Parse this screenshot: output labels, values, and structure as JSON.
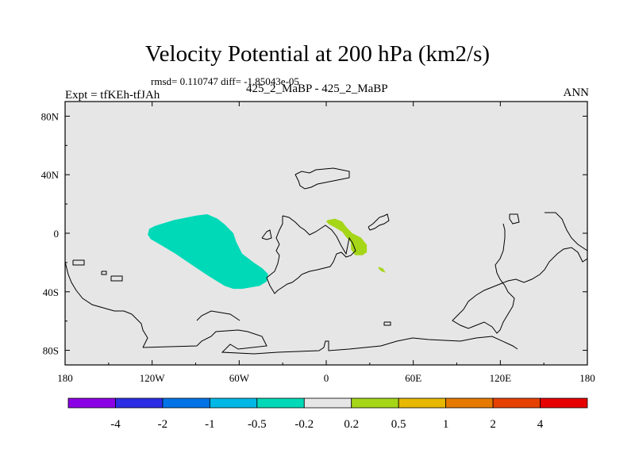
{
  "title": "Velocity Potential at 200 hPa (km2/s)",
  "stats": "rmsd= 0.110747 diff= -1.85043e-05",
  "expt": "Expt = tfKEh-tfJAh",
  "cases": "425_2_MaBP - 425_2_MaBP",
  "season": "ANN",
  "map": {
    "lon_range": [
      -180,
      180
    ],
    "lat_range": [
      -90,
      90
    ],
    "x_ticks": [
      {
        "lon": -180,
        "label": "180"
      },
      {
        "lon": -120,
        "label": "120W"
      },
      {
        "lon": -60,
        "label": "60W"
      },
      {
        "lon": 0,
        "label": "0"
      },
      {
        "lon": 60,
        "label": "60E"
      },
      {
        "lon": 120,
        "label": "120E"
      },
      {
        "lon": 180,
        "label": "180"
      }
    ],
    "y_ticks": [
      {
        "lat": 80,
        "label": "80N"
      },
      {
        "lat": 40,
        "label": "40N"
      },
      {
        "lat": 0,
        "label": "0"
      },
      {
        "lat": -40,
        "label": "40S"
      },
      {
        "lat": -80,
        "label": "80S"
      }
    ],
    "background_color": "#e6e6e6",
    "regions": [
      {
        "name": "negative-anomaly-pacific",
        "color": "#00d9b8",
        "outline": [
          [
            -122,
            3
          ],
          [
            -118,
            5
          ],
          [
            -105,
            9
          ],
          [
            -90,
            12
          ],
          [
            -82,
            13
          ],
          [
            -75,
            10
          ],
          [
            -70,
            6
          ],
          [
            -64,
            0
          ],
          [
            -62,
            -6
          ],
          [
            -58,
            -14
          ],
          [
            -50,
            -20
          ],
          [
            -44,
            -24
          ],
          [
            -40,
            -28
          ],
          [
            -41,
            -33
          ],
          [
            -46,
            -36
          ],
          [
            -58,
            -38
          ],
          [
            -64,
            -38
          ],
          [
            -70,
            -36
          ],
          [
            -80,
            -30
          ],
          [
            -92,
            -22
          ],
          [
            -104,
            -14
          ],
          [
            -114,
            -8
          ],
          [
            -121,
            -4
          ],
          [
            -123,
            -1
          ]
        ]
      },
      {
        "name": "positive-anomaly-africa",
        "color": "#a6d618",
        "outline": [
          [
            1,
            9
          ],
          [
            6,
            10
          ],
          [
            11,
            8
          ],
          [
            14,
            4
          ],
          [
            18,
            0
          ],
          [
            24,
            -3
          ],
          [
            28,
            -8
          ],
          [
            28,
            -13
          ],
          [
            25,
            -15
          ],
          [
            20,
            -15
          ],
          [
            17,
            -11
          ],
          [
            17,
            -6
          ],
          [
            14,
            -3
          ],
          [
            11,
            1
          ],
          [
            6,
            4
          ],
          [
            2,
            6
          ],
          [
            0,
            8
          ]
        ]
      },
      {
        "name": "positive-anomaly-small",
        "color": "#a6d618",
        "outline": [
          [
            36,
            -23
          ],
          [
            39,
            -24
          ],
          [
            41,
            -27
          ],
          [
            38,
            -26
          ],
          [
            36,
            -24
          ]
        ]
      }
    ]
  },
  "colorbar": {
    "colors": [
      "#8c00e6",
      "#2d2de6",
      "#0073e6",
      "#00b8e6",
      "#00d9b8",
      "#e6e6e6",
      "#a6d618",
      "#e6b800",
      "#e67a00",
      "#e64000",
      "#e60000"
    ],
    "labels": [
      "-4",
      "-2",
      "-1",
      "-0.5",
      "-0.2",
      "0.2",
      "0.5",
      "1",
      "2",
      "4"
    ]
  }
}
